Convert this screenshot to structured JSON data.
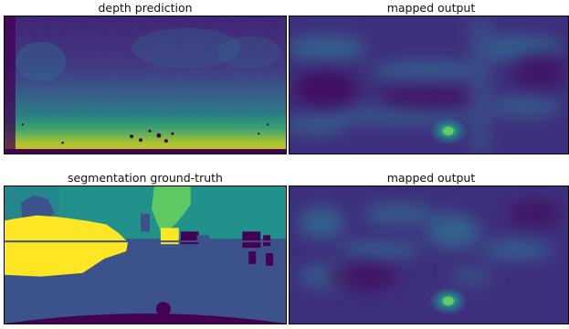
{
  "panels": {
    "top_left": {
      "title": "depth prediction"
    },
    "top_right": {
      "title": "mapped output"
    },
    "bottom_left": {
      "title": "segmentation ground-truth"
    },
    "bottom_right": {
      "title": "mapped output"
    }
  },
  "colormap": {
    "name": "viridis",
    "dark": "#440154",
    "indigo": "#3b2a7a",
    "blue": "#31688e",
    "teal": "#21918c",
    "green": "#35b779",
    "yellow": "#fde725"
  }
}
